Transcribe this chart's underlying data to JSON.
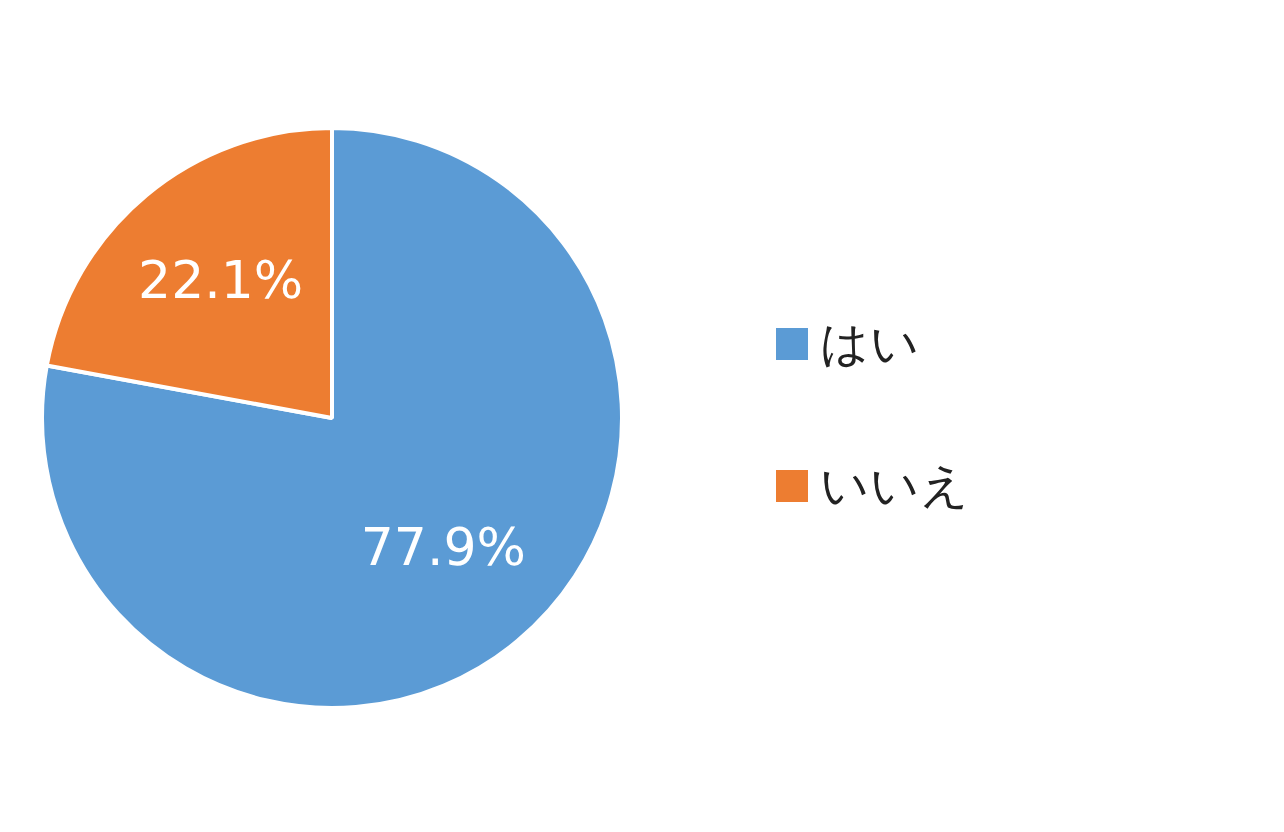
{
  "chart_data": {
    "type": "pie",
    "categories": [
      "はい",
      "いいえ"
    ],
    "values": [
      77.9,
      22.1
    ],
    "colors": [
      "#5b9bd5",
      "#ed7d31"
    ],
    "value_labels": [
      "77.9%",
      "22.1%"
    ],
    "legend": "right"
  }
}
